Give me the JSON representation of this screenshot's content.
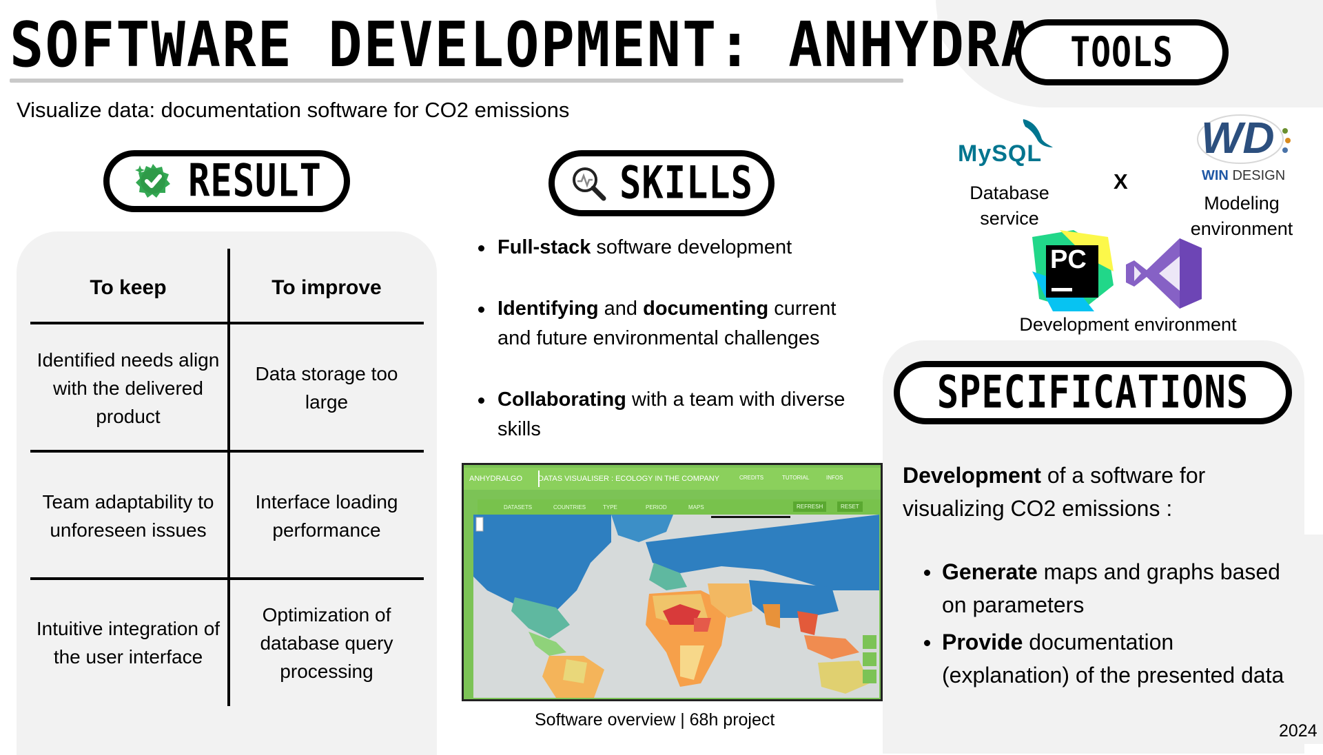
{
  "header": {
    "title": "SOFTWARE DEVELOPMENT: ANHYDRALGO",
    "subtitle": "Visualize data: documentation software for CO2 emissions"
  },
  "result": {
    "heading": "RESULT",
    "icon": "check-circle-icon",
    "columns": [
      "To keep",
      "To  improve"
    ],
    "rows": [
      {
        "keep": "Identified needs align with the delivered product",
        "improve": "Data storage too large"
      },
      {
        "keep": "Team adaptability to unforeseen issues",
        "improve": "Interface loading performance"
      },
      {
        "keep": "Intuitive integration of the user interface",
        "improve": "Optimization of database query processing"
      }
    ]
  },
  "skills": {
    "heading": "SKILLS",
    "icon": "magnifier-chart-icon",
    "items": [
      {
        "bold": "Full-stack",
        "rest": " software development"
      },
      {
        "bold1": "Identifying",
        "mid": " and ",
        "bold2": "documenting",
        "rest": " current and future environmental challenges"
      },
      {
        "bold": "Collaborating",
        "rest": " with a team with diverse skills"
      }
    ]
  },
  "screenshot": {
    "app_name": "ANHYDRALGO",
    "app_title": "DATAS VISUALISER : ECOLOGY IN THE COMPANY",
    "nav": [
      "DATASETS",
      "COUNTRIES",
      "TYPE",
      "PERIOD",
      "MAPS"
    ],
    "links": [
      "CREDITS",
      "TUTORIAL",
      "INFOS"
    ],
    "buttons": [
      "REFRESH",
      "RESET"
    ],
    "caption": "Software overview | 68h project"
  },
  "tools": {
    "heading": "TOOLS",
    "mysql_logo": "MySQL",
    "mysql_label": "Database service",
    "separator": "X",
    "windesign_logo": "WD",
    "windesign_sub_win": "WIN",
    "windesign_sub_design": "DESIGN",
    "windesign_label": "Modeling environment",
    "pycharm_logo": "PC",
    "dev_label": "Development environment"
  },
  "specifications": {
    "heading": "SPECIFICATIONS",
    "intro_bold": "Development",
    "intro_rest": " of a software for visualizing CO2 emissions :",
    "items": [
      {
        "bold": "Generate",
        "rest": " maps and graphs based on parameters"
      },
      {
        "bold": "Provide",
        "rest": " documentation (explanation) of the presented data"
      }
    ]
  },
  "footer": {
    "year": "2024"
  },
  "colors": {
    "accent_green": "#34a853",
    "mysql_blue": "#00758f",
    "mysql_orange": "#f29111",
    "vs_purple": "#8661c5"
  }
}
